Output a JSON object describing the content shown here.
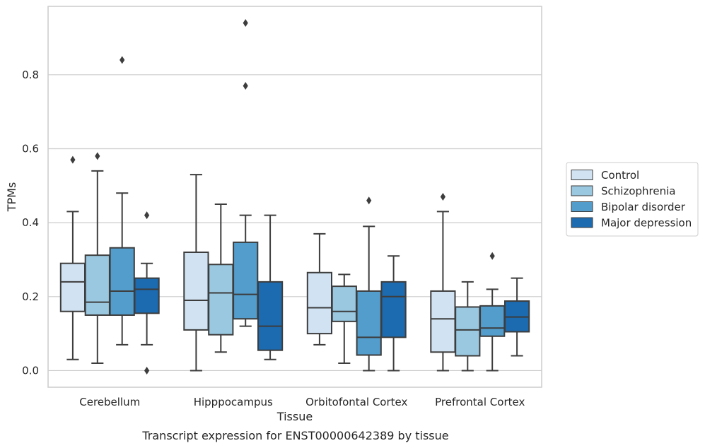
{
  "chart_data": {
    "type": "boxplot",
    "xlabel": "Tissue",
    "ylabel": "TPMs",
    "caption": "Transcript expression for ENST00000642389 by tissue",
    "ylim": [
      -0.045,
      0.985
    ],
    "yticks": [
      "0.0",
      "0.2",
      "0.4",
      "0.6",
      "0.8"
    ],
    "grid": "horizontal",
    "legend_position": "right",
    "categories": [
      "Cerebellum",
      "Hipppocampus",
      "Orbitofontal Cortex",
      "Prefrontal Cortex"
    ],
    "series": [
      {
        "name": "Control",
        "color": "#d1e2f2",
        "boxes": [
          {
            "whislo": 0.03,
            "q1": 0.16,
            "med": 0.24,
            "q3": 0.29,
            "whishi": 0.43,
            "fliers": [
              0.57
            ]
          },
          {
            "whislo": 0.0,
            "q1": 0.11,
            "med": 0.19,
            "q3": 0.32,
            "whishi": 0.53,
            "fliers": []
          },
          {
            "whislo": 0.07,
            "q1": 0.1,
            "med": 0.17,
            "q3": 0.265,
            "whishi": 0.37,
            "fliers": []
          },
          {
            "whislo": 0.0,
            "q1": 0.05,
            "med": 0.14,
            "q3": 0.215,
            "whishi": 0.43,
            "fliers": [
              0.47
            ]
          }
        ]
      },
      {
        "name": "Schizophrenia",
        "color": "#9ac8e0",
        "boxes": [
          {
            "whislo": 0.02,
            "q1": 0.15,
            "med": 0.185,
            "q3": 0.312,
            "whishi": 0.54,
            "fliers": [
              0.58
            ]
          },
          {
            "whislo": 0.05,
            "q1": 0.097,
            "med": 0.21,
            "q3": 0.287,
            "whishi": 0.45,
            "fliers": []
          },
          {
            "whislo": 0.02,
            "q1": 0.133,
            "med": 0.16,
            "q3": 0.228,
            "whishi": 0.26,
            "fliers": []
          },
          {
            "whislo": 0.0,
            "q1": 0.04,
            "med": 0.11,
            "q3": 0.172,
            "whishi": 0.24,
            "fliers": []
          }
        ]
      },
      {
        "name": "Bipolar disorder",
        "color": "#529dcc",
        "boxes": [
          {
            "whislo": 0.07,
            "q1": 0.15,
            "med": 0.215,
            "q3": 0.332,
            "whishi": 0.48,
            "fliers": [
              0.84
            ]
          },
          {
            "whislo": 0.12,
            "q1": 0.14,
            "med": 0.206,
            "q3": 0.347,
            "whishi": 0.42,
            "fliers": [
              0.94,
              0.77
            ]
          },
          {
            "whislo": 0.0,
            "q1": 0.042,
            "med": 0.09,
            "q3": 0.215,
            "whishi": 0.39,
            "fliers": [
              0.46
            ]
          },
          {
            "whislo": 0.0,
            "q1": 0.093,
            "med": 0.115,
            "q3": 0.175,
            "whishi": 0.22,
            "fliers": [
              0.31
            ]
          }
        ]
      },
      {
        "name": "Major depression",
        "color": "#1c6aaf",
        "boxes": [
          {
            "whislo": 0.07,
            "q1": 0.155,
            "med": 0.22,
            "q3": 0.25,
            "whishi": 0.29,
            "fliers": [
              0.42,
              0.0
            ]
          },
          {
            "whislo": 0.03,
            "q1": 0.055,
            "med": 0.12,
            "q3": 0.24,
            "whishi": 0.42,
            "fliers": []
          },
          {
            "whislo": 0.0,
            "q1": 0.09,
            "med": 0.2,
            "q3": 0.24,
            "whishi": 0.31,
            "fliers": []
          },
          {
            "whislo": 0.04,
            "q1": 0.105,
            "med": 0.145,
            "q3": 0.188,
            "whishi": 0.25,
            "fliers": []
          }
        ]
      }
    ]
  }
}
